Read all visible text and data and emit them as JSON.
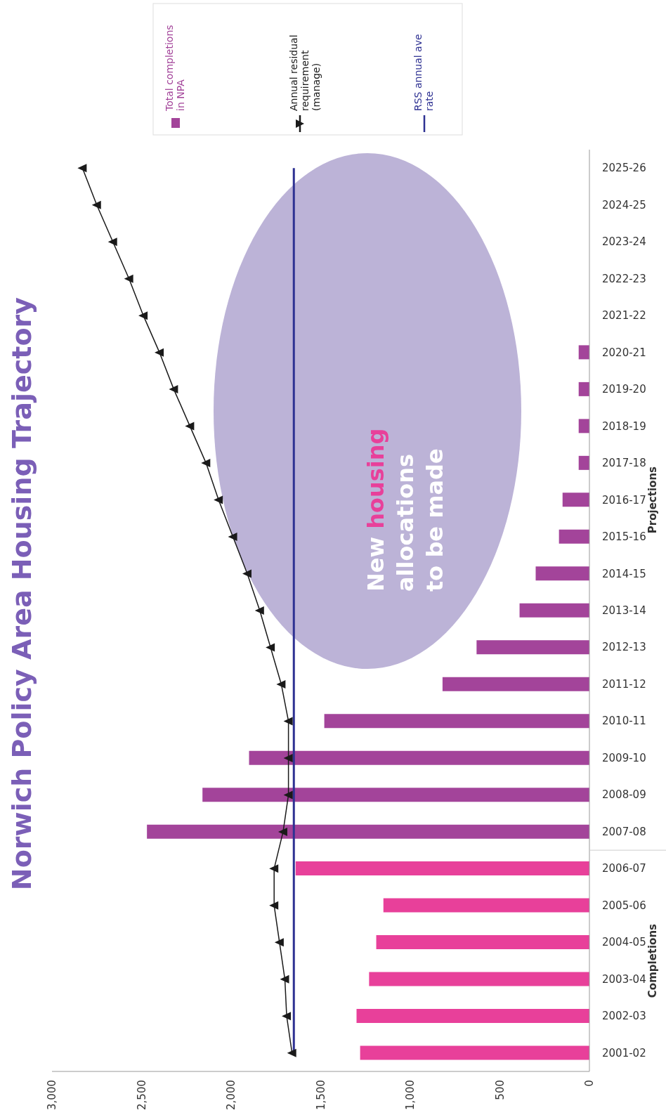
{
  "chart_data": {
    "type": "bar",
    "orientation": "horizontal",
    "title": "Norwich Policy Area Housing Trajectory",
    "categories": [
      "2025-26",
      "2024-25",
      "2023-24",
      "2022-23",
      "2021-22",
      "2020-21",
      "2019-20",
      "2018-19",
      "2017-18",
      "2016-17",
      "2015-16",
      "2014-15",
      "2013-14",
      "2012-13",
      "2011-12",
      "2010-11",
      "2009-10",
      "2008-09",
      "2007-08",
      "2006-07",
      "2005-06",
      "2004-05",
      "2003-04",
      "2002-03",
      "2001-02"
    ],
    "series": [
      {
        "name": "Total completions in NPA",
        "color": "#a3449a",
        "colors": [
          "#a3449a",
          "#a3449a",
          "#a3449a",
          "#a3449a",
          "#a3449a",
          "#a3449a",
          "#a3449a",
          "#a3449a",
          "#a3449a",
          "#a3449a",
          "#a3449a",
          "#a3449a",
          "#a3449a",
          "#a3449a",
          "#a3449a",
          "#a3449a",
          "#a3449a",
          "#a3449a",
          "#a3449a",
          "#e8409a",
          "#e8409a",
          "#e8409a",
          "#e8409a",
          "#e8409a",
          "#e8409a"
        ],
        "values": [
          null,
          null,
          null,
          null,
          null,
          60,
          60,
          60,
          60,
          150,
          170,
          300,
          390,
          630,
          820,
          1480,
          1900,
          2160,
          2470,
          1640,
          1150,
          1190,
          1230,
          1300,
          1280
        ]
      },
      {
        "name": "Annual residual requirement (manage)",
        "type": "line",
        "color": "#1a1a1a",
        "marker": "triangle",
        "values": [
          2830,
          2750,
          2660,
          2570,
          2490,
          2400,
          2320,
          2230,
          2140,
          2070,
          1990,
          1910,
          1840,
          1780,
          1720,
          1680,
          1680,
          1680,
          1710,
          1760,
          1760,
          1730,
          1700,
          1690,
          1660
        ]
      },
      {
        "name": "RSS annual ave rate",
        "type": "line",
        "color": "#2e3192",
        "marker": "none",
        "values": [
          1650,
          1650,
          1650,
          1650,
          1650,
          1650,
          1650,
          1650,
          1650,
          1650,
          1650,
          1650,
          1650,
          1650,
          1650,
          1650,
          1650,
          1650,
          1650,
          1650,
          1650,
          1650,
          1650,
          1650,
          1650
        ]
      }
    ],
    "xlim": [
      3000,
      0
    ],
    "xticks": [
      {
        "value": 3000,
        "label": "3,000"
      },
      {
        "value": 2500,
        "label": "2,500"
      },
      {
        "value": 2000,
        "label": "2,000"
      },
      {
        "value": 1500,
        "label": "1,500"
      },
      {
        "value": 1000,
        "label": "1,000"
      },
      500,
      0
    ],
    "legend": "top",
    "annotations": [
      "Projections",
      "Completions",
      "New housing allocations to be made"
    ]
  }
}
